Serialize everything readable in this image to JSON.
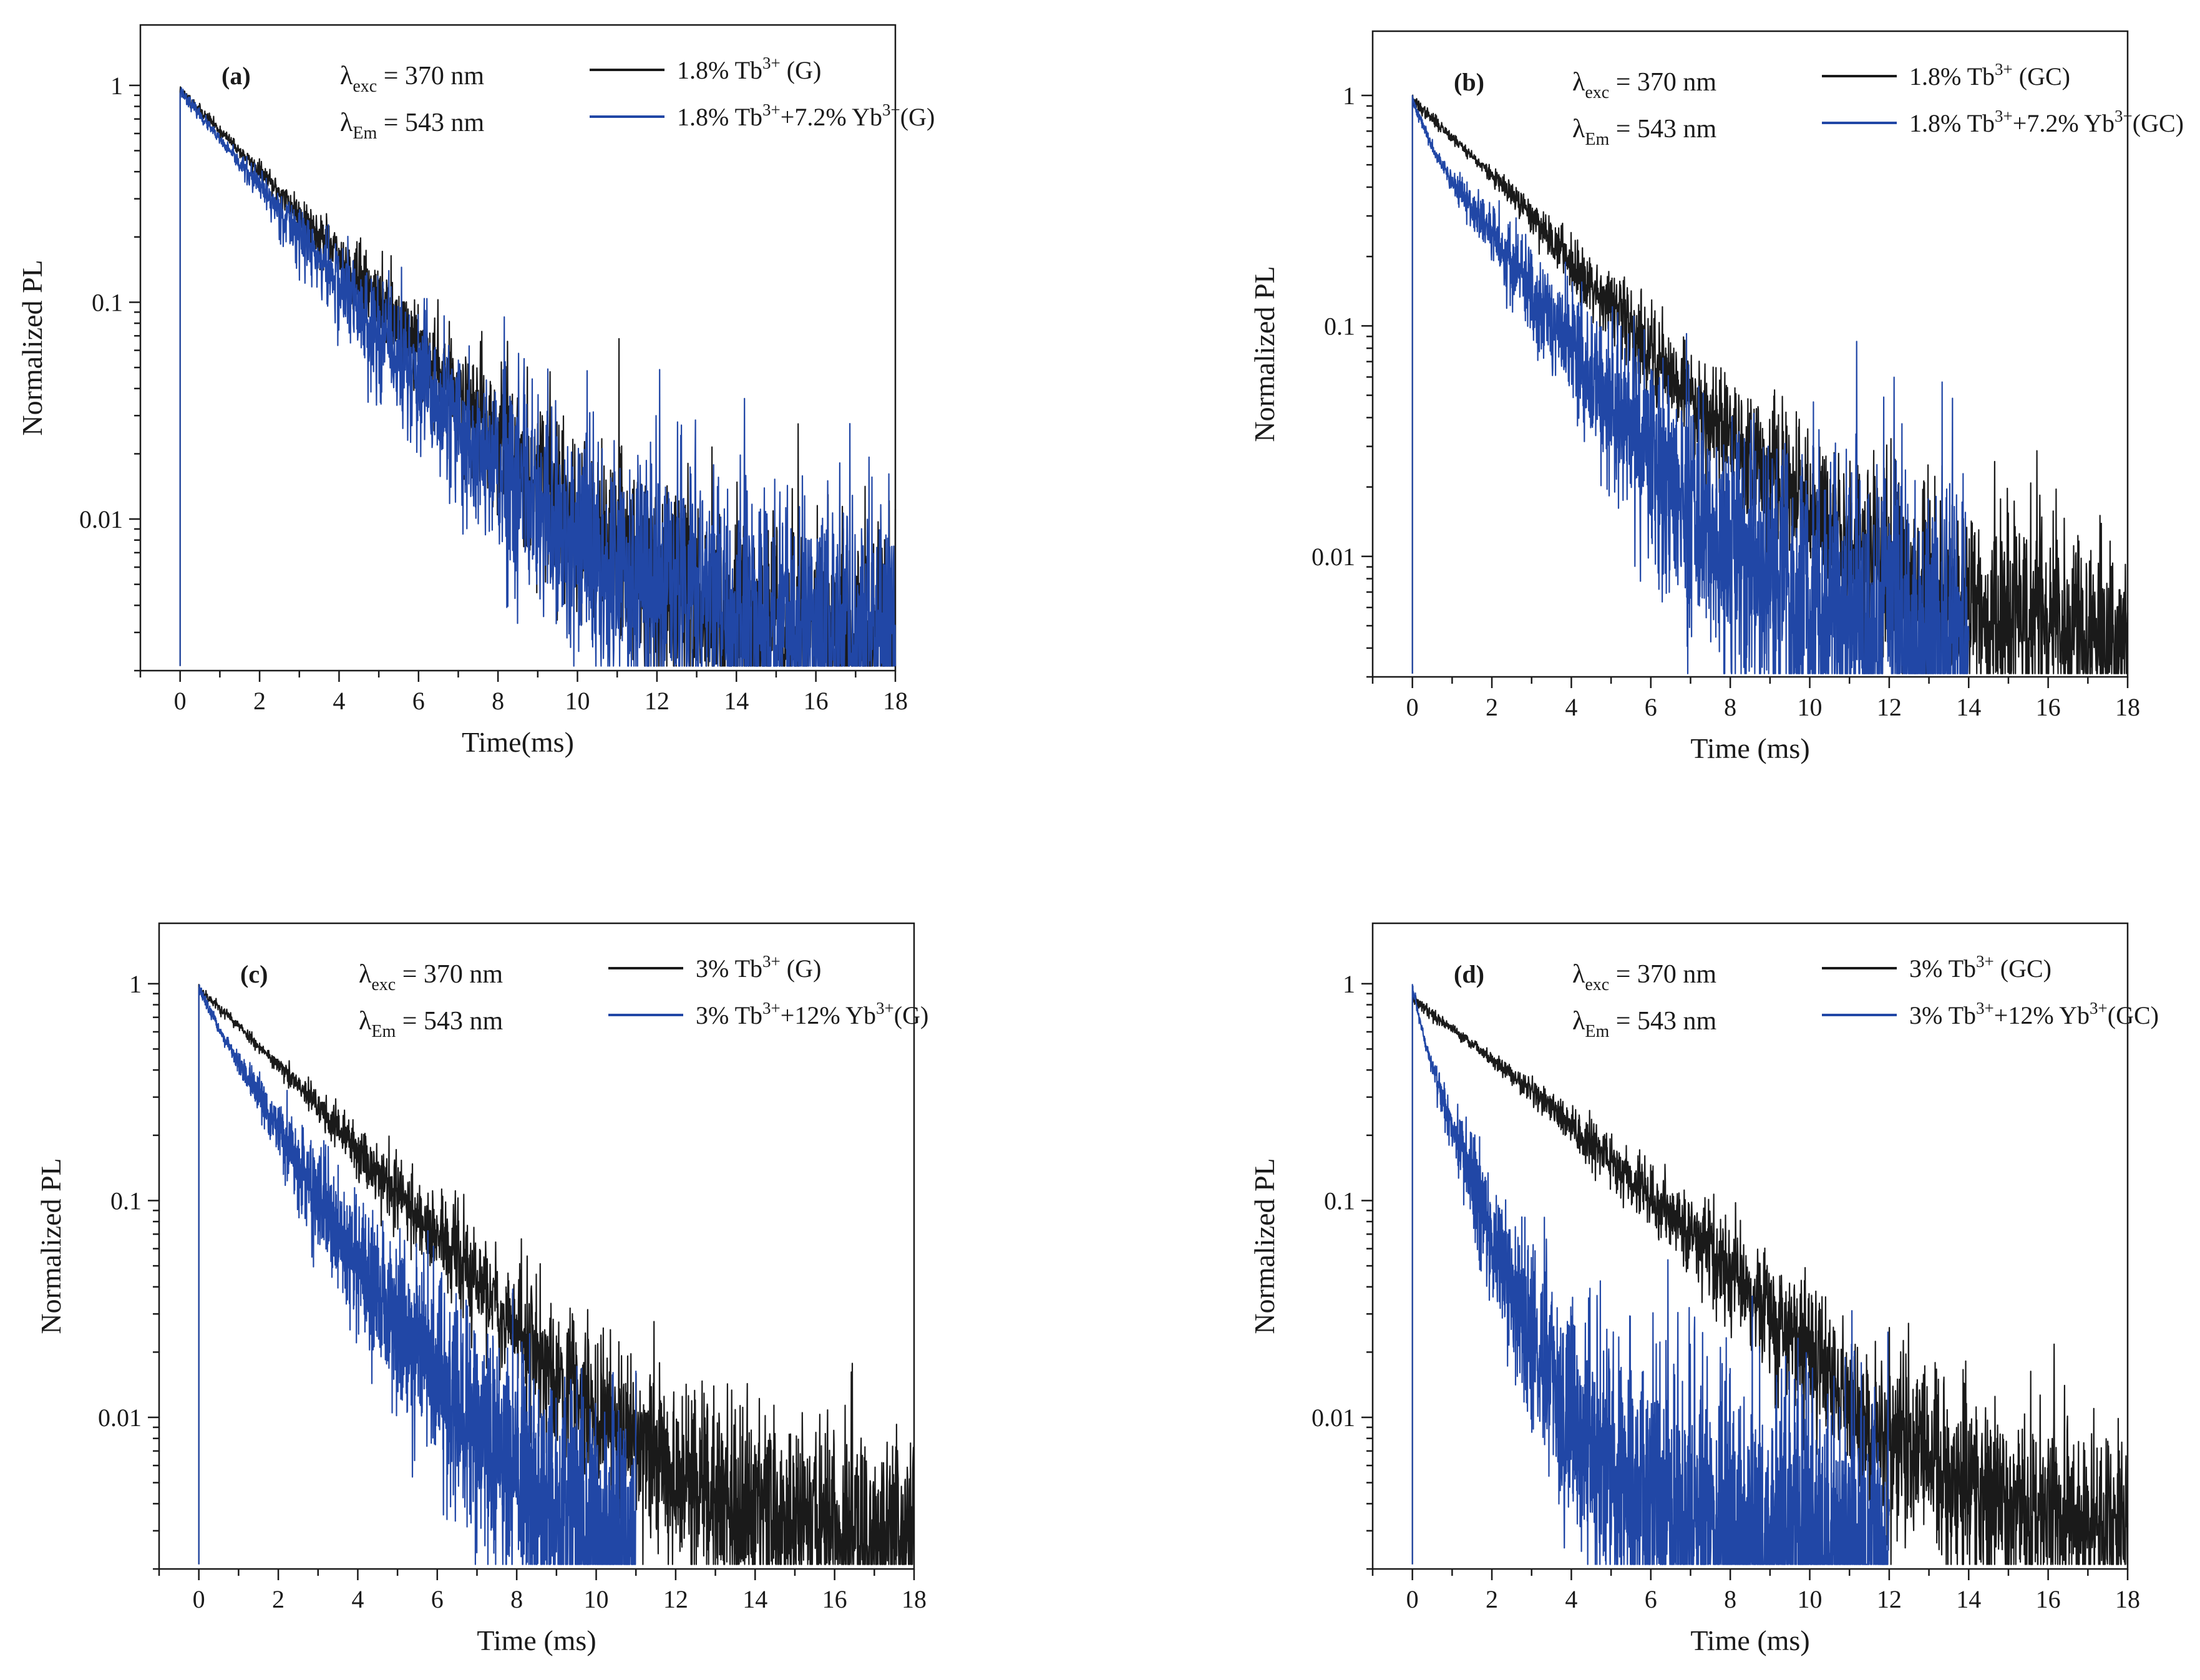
{
  "chart_data": [
    {
      "id": "a",
      "type": "line",
      "panel_label": "(a)",
      "yscale": "log",
      "xlim": [
        -1,
        18
      ],
      "ylim": [
        0.002,
        1.9
      ],
      "xticks": [
        0,
        2,
        4,
        6,
        8,
        10,
        12,
        14,
        16,
        18
      ],
      "yticks": [
        {
          "value": 1,
          "label": "1"
        },
        {
          "value": 0.1,
          "label": "0.1"
        },
        {
          "value": 0.01,
          "label": "0.01"
        }
      ],
      "xlabel": "Time(ms)",
      "ylabel": "Normalized PL",
      "annotations": {
        "exc_symbol": "λ",
        "exc_sub": "exc",
        "exc_value": " = 370 nm",
        "em_symbol": "λ",
        "em_sub": "Em",
        "em_value": " = 543 nm"
      },
      "legend_position": "top-right",
      "floor": 0.0021,
      "series": [
        {
          "name": "1.8% Tb3+ (G)",
          "color": "#1a1a1a",
          "legend": {
            "pre": "1.8% Tb",
            "sup1": "3+",
            "mid": " (G)",
            "sup2": "",
            "post": ""
          },
          "t": [
            0,
            1,
            2,
            3,
            4,
            5,
            6,
            7,
            8,
            9,
            10,
            12,
            14,
            16,
            18
          ],
          "y": [
            0.95,
            0.62,
            0.4,
            0.255,
            0.16,
            0.1,
            0.062,
            0.038,
            0.023,
            0.0145,
            0.0095,
            0.0052,
            0.0036,
            0.003,
            0.0028
          ],
          "noise": 0.55,
          "seed": 11
        },
        {
          "name": "1.8% Tb3+ + 7.2% Yb3+ (G)",
          "color": "#2147a6",
          "legend": {
            "pre": "1.8% Tb",
            "sup1": "3+",
            "mid": "+7.2% Yb",
            "sup2": "3+",
            "post": "(G)"
          },
          "t": [
            0,
            1,
            2,
            3,
            4,
            5,
            6,
            7,
            8,
            9,
            10,
            12,
            14,
            16,
            18
          ],
          "y": [
            0.95,
            0.56,
            0.34,
            0.205,
            0.12,
            0.072,
            0.043,
            0.026,
            0.016,
            0.0105,
            0.0075,
            0.0048,
            0.0037,
            0.0032,
            0.003
          ],
          "noise": 0.75,
          "seed": 23
        }
      ]
    },
    {
      "id": "b",
      "type": "line",
      "panel_label": "(b)",
      "yscale": "log",
      "xlim": [
        -1,
        18
      ],
      "ylim": [
        0.003,
        1.9
      ],
      "xticks": [
        0,
        2,
        4,
        6,
        8,
        10,
        12,
        14,
        16,
        18
      ],
      "yticks": [
        {
          "value": 1,
          "label": "1"
        },
        {
          "value": 0.1,
          "label": "0.1"
        },
        {
          "value": 0.01,
          "label": "0.01"
        }
      ],
      "xlabel": "Time (ms)",
      "ylabel": "Normalized PL",
      "annotations": {
        "exc_symbol": "λ",
        "exc_sub": "exc",
        "exc_value": " = 370 nm",
        "em_symbol": "λ",
        "em_sub": "Em",
        "em_value": " = 543 nm"
      },
      "legend_position": "top-right",
      "floor": 0.0031,
      "series": [
        {
          "name": "1.8% Tb3+ (GC)",
          "color": "#1a1a1a",
          "legend": {
            "pre": "1.8% Tb",
            "sup1": "3+",
            "mid": " (GC)",
            "sup2": "",
            "post": ""
          },
          "t": [
            0,
            1,
            2,
            3,
            4,
            5,
            6,
            7,
            8,
            9,
            10,
            12,
            14,
            16,
            18
          ],
          "y": [
            0.95,
            0.66,
            0.45,
            0.3,
            0.19,
            0.122,
            0.078,
            0.05,
            0.033,
            0.022,
            0.015,
            0.0085,
            0.0058,
            0.0046,
            0.0042
          ],
          "noise": 0.55,
          "seed": 37
        },
        {
          "name": "1.8% Tb3+ + 7.2% Yb3+ (GC)",
          "color": "#2147a6",
          "legend": {
            "pre": "1.8% Tb",
            "sup1": "3+",
            "mid": "+7.2% Yb",
            "sup2": "3+",
            "post": "(GC)"
          },
          "t": [
            0,
            0.5,
            1,
            2,
            3,
            4,
            5,
            6,
            7,
            8,
            9,
            10,
            11,
            12,
            14
          ],
          "y": [
            0.95,
            0.6,
            0.42,
            0.25,
            0.14,
            0.078,
            0.045,
            0.026,
            0.016,
            0.011,
            0.008,
            0.006,
            0.005,
            0.0045,
            0.004
          ],
          "noise": 0.85,
          "seed": 41
        }
      ]
    },
    {
      "id": "c",
      "type": "line",
      "panel_label": "(c)",
      "yscale": "log",
      "xlim": [
        -1,
        18
      ],
      "ylim": [
        0.002,
        1.9
      ],
      "xticks": [
        0,
        2,
        4,
        6,
        8,
        10,
        12,
        14,
        16,
        18
      ],
      "yticks": [
        {
          "value": 1,
          "label": "1"
        },
        {
          "value": 0.1,
          "label": "0.1"
        },
        {
          "value": 0.01,
          "label": "0.01"
        }
      ],
      "xlabel": "Time (ms)",
      "ylabel": "Normalized PL",
      "annotations": {
        "exc_symbol": "λ",
        "exc_sub": "exc",
        "exc_value": " = 370 nm",
        "em_symbol": "λ",
        "em_sub": "Em",
        "em_value": " = 543 nm"
      },
      "legend_position": "top-right",
      "floor": 0.0021,
      "series": [
        {
          "name": "3% Tb3+ (G)",
          "color": "#1a1a1a",
          "legend": {
            "pre": "3% Tb",
            "sup1": "3+",
            "mid": " (G)",
            "sup2": "",
            "post": ""
          },
          "t": [
            0,
            1,
            2,
            3,
            4,
            5,
            6,
            7,
            8,
            9,
            10,
            12,
            14,
            16,
            18
          ],
          "y": [
            0.95,
            0.64,
            0.42,
            0.27,
            0.17,
            0.108,
            0.068,
            0.042,
            0.026,
            0.016,
            0.0105,
            0.0055,
            0.0036,
            0.003,
            0.0028
          ],
          "noise": 0.55,
          "seed": 53
        },
        {
          "name": "3% Tb3+ + 12% Yb3+ (G)",
          "color": "#2147a6",
          "legend": {
            "pre": "3% Tb",
            "sup1": "3+",
            "mid": "+12% Yb",
            "sup2": "3+",
            "post": "(G)"
          },
          "t": [
            0,
            0.5,
            1,
            2,
            3,
            4,
            5,
            6,
            7,
            8,
            9,
            10,
            11
          ],
          "y": [
            0.95,
            0.62,
            0.43,
            0.21,
            0.102,
            0.052,
            0.028,
            0.0155,
            0.0088,
            0.0055,
            0.0038,
            0.003,
            0.0026
          ],
          "noise": 0.7,
          "seed": 67
        }
      ]
    },
    {
      "id": "d",
      "type": "line",
      "panel_label": "(d)",
      "yscale": "log",
      "xlim": [
        -1,
        18
      ],
      "ylim": [
        0.002,
        1.9
      ],
      "xticks": [
        0,
        2,
        4,
        6,
        8,
        10,
        12,
        14,
        16,
        18
      ],
      "yticks": [
        {
          "value": 1,
          "label": "1"
        },
        {
          "value": 0.1,
          "label": "0.1"
        },
        {
          "value": 0.01,
          "label": "0.01"
        }
      ],
      "xlabel": "Time (ms)",
      "ylabel": "Normalized PL",
      "annotations": {
        "exc_symbol": "λ",
        "exc_sub": "exc",
        "exc_value": " = 370 nm",
        "em_symbol": "λ",
        "em_sub": "Em",
        "em_value": " = 543 nm"
      },
      "legend_position": "top-right",
      "floor": 0.0021,
      "series": [
        {
          "name": "3% Tb3+ (GC)",
          "color": "#1a1a1a",
          "legend": {
            "pre": "3% Tb",
            "sup1": "3+",
            "mid": " (GC)",
            "sup2": "",
            "post": ""
          },
          "t": [
            0,
            1,
            2,
            3,
            4,
            5,
            6,
            7,
            8,
            9,
            10,
            11,
            12,
            14,
            16,
            18
          ],
          "y": [
            0.85,
            0.62,
            0.45,
            0.32,
            0.22,
            0.152,
            0.104,
            0.07,
            0.046,
            0.03,
            0.019,
            0.012,
            0.008,
            0.0045,
            0.0034,
            0.003
          ],
          "noise": 0.5,
          "seed": 79
        },
        {
          "name": "3% Tb3+ + 12% Yb3+ (GC)",
          "color": "#2147a6",
          "legend": {
            "pre": "3% Tb",
            "sup1": "3+",
            "mid": "+12% Yb",
            "sup2": "3+",
            "post": "(GC)"
          },
          "t": [
            0,
            0.3,
            0.6,
            1,
            1.5,
            2,
            2.5,
            3,
            3.5,
            4,
            5,
            6,
            8,
            10,
            12
          ],
          "y": [
            0.95,
            0.55,
            0.36,
            0.22,
            0.12,
            0.068,
            0.04,
            0.024,
            0.015,
            0.0098,
            0.0055,
            0.004,
            0.003,
            0.0026,
            0.0024
          ],
          "noise": 0.8,
          "seed": 97
        }
      ]
    }
  ]
}
